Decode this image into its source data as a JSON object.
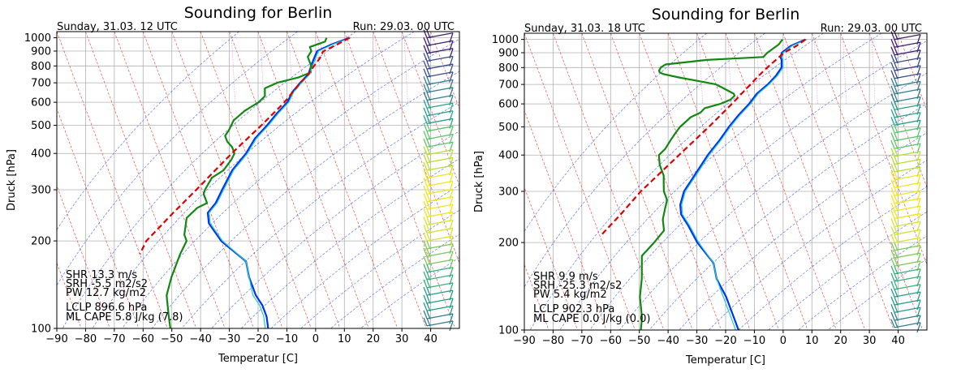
{
  "chart_data": [
    {
      "type": "line",
      "title": "Sounding for Berlin",
      "subtitle_left": "Sunday, 31.03. 12 UTC",
      "subtitle_right": "Run: 29.03. 00 UTC",
      "xlabel": "Temperatur [C]",
      "ylabel": "Druck [hPa]",
      "xlim": [
        -90,
        50
      ],
      "ylim": [
        1050,
        100
      ],
      "log_y": true,
      "grid": true,
      "x_ticks": [
        "−90",
        "−80",
        "−70",
        "−60",
        "−50",
        "−40",
        "−30",
        "−20",
        "−10",
        "0",
        "10",
        "20",
        "30",
        "40"
      ],
      "y_ticks": [
        "100",
        "200",
        "300",
        "400",
        "500",
        "600",
        "700",
        "800",
        "900",
        "1000"
      ],
      "series": [
        {
          "role": "temperature",
          "color": "#0033ee",
          "p": [
            1000,
            950,
            900,
            850,
            800,
            750,
            700,
            650,
            600,
            550,
            500,
            450,
            400,
            350,
            300,
            270,
            250,
            230,
            200,
            170,
            150,
            130,
            120,
            110,
            100
          ],
          "t": [
            11,
            4,
            -2,
            -4,
            -6,
            -8,
            -12,
            -16,
            -19,
            -24,
            -29,
            -35,
            -40,
            -47,
            -53,
            -57,
            -61,
            -62,
            -60,
            -54,
            -55,
            -55,
            -54,
            -54,
            -55
          ]
        },
        {
          "role": "dewpoint",
          "color": "#118811",
          "p": [
            1000,
            970,
            930,
            900,
            860,
            830,
            800,
            760,
            730,
            700,
            670,
            630,
            600,
            560,
            520,
            480,
            460,
            440,
            420,
            400,
            380,
            350,
            330,
            300,
            290,
            270,
            260,
            240,
            210,
            200,
            180,
            150,
            130,
            110,
            100
          ],
          "t": [
            3,
            2,
            -4,
            -4,
            -6,
            -6,
            -6,
            -7,
            -12,
            -20,
            -25,
            -26,
            -29,
            -35,
            -40,
            -43,
            -45,
            -45,
            -44,
            -44,
            -46,
            -50,
            -55,
            -59,
            -60,
            -60,
            -64,
            -69,
            -72,
            -72,
            -76,
            -82,
            -86,
            -88,
            -89
          ]
        },
        {
          "role": "virtual-temperature",
          "color": "#22cccc",
          "p": [
            1000,
            950,
            900,
            850,
            800,
            750,
            700,
            650,
            600,
            550,
            500,
            450,
            400,
            350,
            300,
            270,
            250,
            230,
            200,
            170,
            150,
            130,
            120,
            110,
            100
          ],
          "t": [
            11.5,
            4.5,
            -1.5,
            -3.5,
            -5.5,
            -7.5,
            -11.5,
            -15.5,
            -18.5,
            -23.5,
            -28.5,
            -34.5,
            -39.5,
            -46.5,
            -52.5,
            -56.5,
            -60.5,
            -61.5,
            -59.5,
            -54,
            -55,
            -56,
            -55,
            -55,
            -56
          ]
        },
        {
          "role": "parcel",
          "color": "#dd0000",
          "dashed": true,
          "p": [
            1000,
            950,
            897,
            850,
            800,
            750,
            700,
            600,
            500,
            400,
            300,
            250,
            200,
            180
          ],
          "t": [
            11,
            6,
            0,
            -2,
            -5,
            -8,
            -12,
            -20,
            -31,
            -45,
            -62,
            -73,
            -86,
            -90
          ]
        }
      ],
      "annotations": [
        "SHR 13.3 m/s",
        "SRH -5.5 m2/s2",
        "PW 12.7 kg/m2",
        "LCLP 896.6 hPa",
        "ML CAPE 5.8 J/kg (7.8)"
      ]
    },
    {
      "type": "line",
      "title": "Sounding for Berlin",
      "subtitle_left": "Sunday, 31.03. 18 UTC",
      "subtitle_right": "Run: 29.03. 00 UTC",
      "xlabel": "Temperatur [C]",
      "ylabel": "Druck [hPa]",
      "xlim": [
        -90,
        50
      ],
      "ylim": [
        1050,
        100
      ],
      "log_y": true,
      "grid": true,
      "x_ticks": [
        "−90",
        "−80",
        "−70",
        "−60",
        "−50",
        "−40",
        "−30",
        "−20",
        "−10",
        "0",
        "10",
        "20",
        "30",
        "40"
      ],
      "y_ticks": [
        "100",
        "200",
        "300",
        "400",
        "500",
        "600",
        "700",
        "800",
        "900",
        "1000"
      ],
      "series": [
        {
          "role": "temperature",
          "color": "#0033ee",
          "p": [
            1000,
            950,
            900,
            870,
            850,
            800,
            750,
            700,
            650,
            600,
            550,
            500,
            450,
            400,
            350,
            300,
            270,
            250,
            230,
            200,
            170,
            150,
            130,
            110,
            100
          ],
          "t": [
            7,
            1,
            -3,
            -4,
            -4,
            -5,
            -8,
            -12,
            -17,
            -21,
            -26,
            -31,
            -36,
            -42,
            -48,
            -55,
            -58,
            -59,
            -58,
            -57,
            -54,
            -55,
            -54,
            -54,
            -54
          ]
        },
        {
          "role": "dewpoint",
          "color": "#118811",
          "p": [
            1000,
            960,
            900,
            870,
            850,
            820,
            800,
            780,
            770,
            760,
            740,
            720,
            700,
            680,
            650,
            640,
            630,
            620,
            600,
            580,
            560,
            540,
            500,
            480,
            450,
            420,
            400,
            370,
            340,
            320,
            300,
            280,
            260,
            240,
            220,
            200,
            180,
            150,
            130,
            110,
            100
          ],
          "t": [
            -1,
            -3,
            -8,
            -10,
            -30,
            -45,
            -47,
            -48,
            -48,
            -47,
            -42,
            -36,
            -30,
            -28,
            -25,
            -25,
            -26,
            -27,
            -31,
            -37,
            -39,
            -43,
            -48,
            -50,
            -53,
            -56,
            -59,
            -60,
            -60,
            -61,
            -62,
            -62,
            -64,
            -66,
            -67,
            -72,
            -78,
            -81,
            -84,
            -86,
            -88
          ]
        },
        {
          "role": "virtual-temperature",
          "color": "#22cccc",
          "p": [
            1000,
            950,
            900,
            870,
            850,
            800,
            750,
            700,
            650,
            600,
            550,
            500,
            450,
            400,
            350,
            300,
            270,
            250,
            230,
            200,
            170,
            150,
            130,
            110,
            100
          ],
          "t": [
            7.5,
            1.5,
            -2.5,
            -3.5,
            -3.5,
            -4.5,
            -7.5,
            -11.5,
            -16.5,
            -20.5,
            -25.5,
            -30.5,
            -35.5,
            -41.5,
            -47.5,
            -54.5,
            -57.5,
            -58.5,
            -57.5,
            -56.5,
            -54,
            -55,
            -55,
            -55,
            -55
          ]
        },
        {
          "role": "parcel",
          "color": "#dd0000",
          "dashed": true,
          "p": [
            1000,
            950,
            902,
            850,
            800,
            750,
            700,
            600,
            500,
            400,
            300,
            250,
            210
          ],
          "t": [
            7,
            3,
            -2,
            -6,
            -10,
            -14,
            -18,
            -27,
            -38,
            -52,
            -70,
            -80,
            -90
          ]
        }
      ],
      "annotations": [
        "SHR 9.9 m/s",
        "SRH -25.3 m2/s2",
        "PW 5.4 kg/m2",
        "LCLP 902.3 hPa",
        "ML CAPE 0.0 J/kg (0.0)"
      ]
    }
  ]
}
